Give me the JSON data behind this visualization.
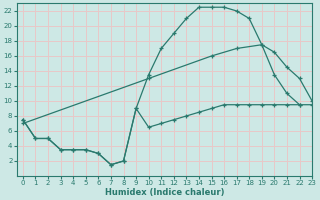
{
  "background_color": "#cde8e5",
  "grid_color": "#e8c8c8",
  "line_color": "#2a7a6e",
  "xlabel": "Humidex (Indice chaleur)",
  "xlim": [
    -0.5,
    23
  ],
  "ylim": [
    0,
    23
  ],
  "yticks": [
    2,
    4,
    6,
    8,
    10,
    12,
    14,
    16,
    18,
    20,
    22
  ],
  "xticks": [
    0,
    1,
    2,
    3,
    4,
    5,
    6,
    7,
    8,
    9,
    10,
    11,
    12,
    13,
    14,
    15,
    16,
    17,
    18,
    19,
    20,
    21,
    22,
    23
  ],
  "curve1_x": [
    0,
    1,
    2,
    3,
    4,
    5,
    6,
    7,
    8,
    9,
    10,
    11,
    12,
    13,
    14,
    15,
    16,
    17,
    18,
    19,
    20,
    21,
    22
  ],
  "curve1_y": [
    7.5,
    5.0,
    5.0,
    3.5,
    3.5,
    3.5,
    3.0,
    1.5,
    2.0,
    9.0,
    13.5,
    17.0,
    19.0,
    21.0,
    22.5,
    22.5,
    22.5,
    22.0,
    21.0,
    17.5,
    13.5,
    11.0,
    9.5
  ],
  "curve2_x": [
    0,
    10,
    15,
    17,
    19,
    20,
    21,
    22,
    23
  ],
  "curve2_y": [
    7.0,
    13.0,
    16.0,
    17.0,
    17.5,
    16.5,
    14.5,
    13.0,
    10.0
  ],
  "curve3_x": [
    0,
    1,
    2,
    3,
    4,
    5,
    6,
    7,
    8,
    9,
    10,
    11,
    12,
    13,
    14,
    15,
    16,
    17,
    18,
    19,
    20,
    21,
    22,
    23
  ],
  "curve3_y": [
    7.5,
    5.0,
    5.0,
    3.5,
    3.5,
    3.5,
    3.0,
    1.5,
    2.0,
    9.0,
    6.5,
    7.0,
    7.5,
    8.0,
    8.5,
    9.0,
    9.5,
    9.5,
    9.5,
    9.5,
    9.5,
    9.5,
    9.5,
    9.5
  ]
}
